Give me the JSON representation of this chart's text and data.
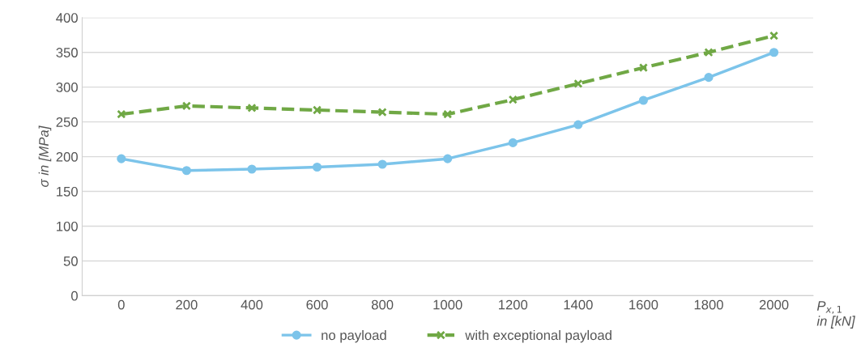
{
  "chart_data": {
    "type": "line",
    "ylabel": "σ in [MPa]",
    "xlabel": "P$_{x,1}$\nin [kN]",
    "categories": [
      "0",
      "200",
      "400",
      "600",
      "800",
      "1000",
      "1200",
      "1400",
      "1600",
      "1800",
      "2000"
    ],
    "series": [
      {
        "name": "no payload",
        "color": "#7cc4ea",
        "marker": "circle",
        "line_style": "solid",
        "values": [
          197,
          180,
          182,
          185,
          189,
          197,
          220,
          246,
          281,
          314,
          350
        ]
      },
      {
        "name": "with exceptional payload",
        "color": "#70a845",
        "marker": "cross",
        "line_style": "dashed",
        "values": [
          261,
          273,
          270,
          267,
          264,
          261,
          282,
          305,
          328,
          350,
          374
        ]
      }
    ],
    "ylim": [
      0,
      400
    ],
    "yticks": [
      0,
      50,
      100,
      150,
      200,
      250,
      300,
      350,
      400
    ],
    "grid": "y",
    "legend": "bottom"
  }
}
